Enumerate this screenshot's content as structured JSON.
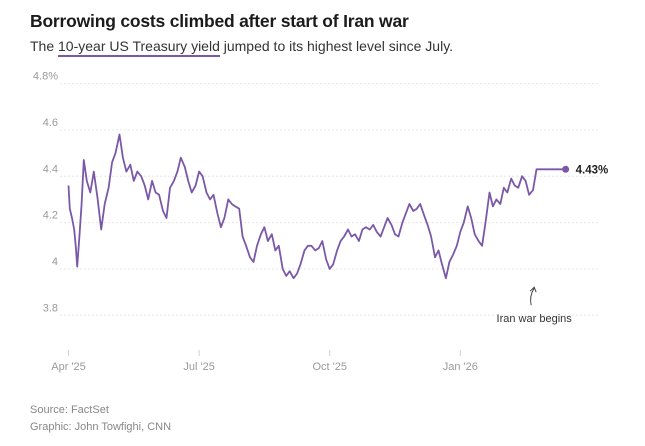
{
  "header": {
    "title": "Borrowing costs climbed after start of Iran war",
    "subtitle_prefix": "The ",
    "subtitle_link": "10-year US Treasury yield",
    "subtitle_suffix": " jumped to its highest level since July."
  },
  "footer": {
    "source": "Source: FactSet",
    "credit": "Graphic: John Towfighi, CNN"
  },
  "colors": {
    "line": "#7a58a8",
    "grid": "#e6e6e6",
    "axis_text": "#9a9a9a"
  },
  "chart_data": {
    "type": "line",
    "title": "Borrowing costs climbed after start of Iran war",
    "y_tick_labels": [
      "4.8%",
      "4.6",
      "4.4",
      "4.2",
      "4",
      "3.8"
    ],
    "y_ticks": [
      4.8,
      4.6,
      4.4,
      4.2,
      4.0,
      3.8
    ],
    "ylim": [
      3.65,
      4.85
    ],
    "x_tick_labels": [
      "Apr '25",
      "Jul '25",
      "Oct '25",
      "Jan '26"
    ],
    "x_ticks": [
      0,
      3,
      6,
      9
    ],
    "xlim": [
      -0.15,
      11.75
    ],
    "grid": true,
    "x_unit": "months since Apr 2025",
    "series": [
      {
        "name": "10-year US Treasury yield",
        "x": [
          0.0,
          0.03,
          0.08,
          0.13,
          0.17,
          0.2,
          0.25,
          0.3,
          0.35,
          0.42,
          0.5,
          0.58,
          0.67,
          0.75,
          0.83,
          0.92,
          1.0,
          1.08,
          1.17,
          1.25,
          1.33,
          1.42,
          1.5,
          1.58,
          1.67,
          1.75,
          1.83,
          1.92,
          2.0,
          2.08,
          2.17,
          2.25,
          2.33,
          2.42,
          2.5,
          2.58,
          2.67,
          2.75,
          2.83,
          2.92,
          3.0,
          3.08,
          3.17,
          3.25,
          3.33,
          3.42,
          3.5,
          3.58,
          3.67,
          3.75,
          3.83,
          3.92,
          4.0,
          4.08,
          4.17,
          4.25,
          4.33,
          4.42,
          4.5,
          4.58,
          4.67,
          4.75,
          4.83,
          4.92,
          5.0,
          5.08,
          5.17,
          5.25,
          5.33,
          5.42,
          5.5,
          5.58,
          5.67,
          5.75,
          5.83,
          5.92,
          6.0,
          6.08,
          6.17,
          6.25,
          6.33,
          6.42,
          6.5,
          6.58,
          6.67,
          6.75,
          6.83,
          6.92,
          7.0,
          7.08,
          7.17,
          7.25,
          7.33,
          7.42,
          7.5,
          7.58,
          7.67,
          7.75,
          7.83,
          7.92,
          8.0,
          8.08,
          8.17,
          8.25,
          8.33,
          8.42,
          8.5,
          8.58,
          8.67,
          8.75,
          8.83,
          8.92,
          9.0,
          9.08,
          9.17,
          9.25,
          9.33,
          9.42,
          9.5,
          9.58,
          9.67,
          9.75,
          9.83,
          9.92,
          10.0,
          10.08,
          10.17,
          10.25,
          10.33,
          10.42,
          10.5,
          10.58,
          10.67,
          10.75,
          10.83,
          10.92,
          11.0,
          11.08,
          11.17,
          11.25,
          11.33,
          11.42
        ],
        "values": [
          4.36,
          4.26,
          4.22,
          4.17,
          4.09,
          4.01,
          4.14,
          4.28,
          4.47,
          4.38,
          4.33,
          4.42,
          4.3,
          4.17,
          4.28,
          4.35,
          4.46,
          4.5,
          4.58,
          4.48,
          4.42,
          4.45,
          4.38,
          4.42,
          4.4,
          4.36,
          4.3,
          4.38,
          4.33,
          4.32,
          4.25,
          4.22,
          4.35,
          4.38,
          4.42,
          4.48,
          4.44,
          4.38,
          4.33,
          4.36,
          4.42,
          4.4,
          4.33,
          4.3,
          4.32,
          4.24,
          4.18,
          4.22,
          4.3,
          4.28,
          4.27,
          4.26,
          4.14,
          4.1,
          4.05,
          4.03,
          4.1,
          4.15,
          4.18,
          4.12,
          4.15,
          4.08,
          4.1,
          4.0,
          3.97,
          3.99,
          3.96,
          3.98,
          4.02,
          4.08,
          4.1,
          4.1,
          4.08,
          4.09,
          4.12,
          4.04,
          4.0,
          4.02,
          4.08,
          4.12,
          4.14,
          4.17,
          4.14,
          4.15,
          4.12,
          4.17,
          4.18,
          4.17,
          4.19,
          4.16,
          4.14,
          4.18,
          4.22,
          4.19,
          4.15,
          4.14,
          4.2,
          4.24,
          4.28,
          4.25,
          4.26,
          4.28,
          4.23,
          4.19,
          4.14,
          4.05,
          4.08,
          4.02,
          3.96,
          4.03,
          4.06,
          4.1,
          4.16,
          4.2,
          4.27,
          4.22,
          4.15,
          4.12,
          4.1,
          4.2,
          4.33,
          4.27,
          4.3,
          4.28,
          4.35,
          4.33,
          4.39,
          4.36,
          4.35,
          4.4,
          4.38,
          4.32,
          4.34,
          4.43,
          4.43,
          4.43,
          4.43,
          4.43,
          4.43,
          4.43,
          4.43,
          4.43
        ]
      }
    ],
    "end_label": "4.43%",
    "annotations": [
      {
        "text": "Iran war begins",
        "x": 10.72,
        "y": 3.96
      }
    ]
  }
}
